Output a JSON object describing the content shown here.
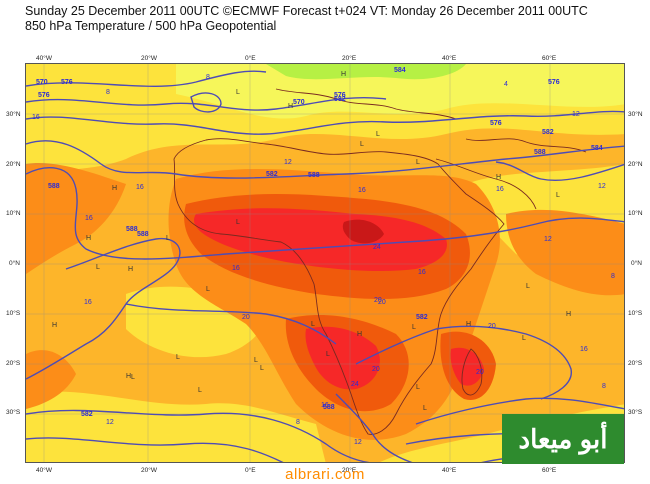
{
  "header": {
    "line1": "Sunday 25 December 2011 00UTC ©ECMWF Forecast t+024 VT: Monday 26 December 2011 00UTC",
    "line2": "850 hPa Temperature / 500 hPa Geopotential"
  },
  "axes": {
    "top_lon": [
      "40°W",
      "20°W",
      "0°E",
      "20°E",
      "40°E",
      "60°E"
    ],
    "bottom_lon": [
      "40°W",
      "20°W",
      "0°E",
      "20°E",
      "40°E",
      "60°E"
    ],
    "lat": [
      "30°N",
      "20°N",
      "10°N",
      "0°N",
      "10°S",
      "20°S",
      "30°S"
    ]
  },
  "colors": {
    "temp_0_4": "#b6f044",
    "temp_4_8": "#f6f65a",
    "temp_8_12": "#fde33c",
    "temp_12_16": "#fdb52a",
    "temp_16_20": "#fc8d18",
    "temp_20_24": "#f05a0c",
    "temp_24_28": "#f62828",
    "temp_28_plus": "#c91818",
    "geopotential": "#4e4cb5",
    "temp_label": "#2b2bd6",
    "coast": "#7a2a20",
    "watermark": "#ff8c00",
    "logo_bg": "#2e8b2e"
  },
  "contours": {
    "geopotential_labels": [
      "570",
      "576",
      "570",
      "576",
      "584",
      "582",
      "576",
      "588",
      "588",
      "588",
      "588",
      "582",
      "582",
      "584",
      "582",
      "588",
      "576",
      "582",
      "588",
      "576"
    ],
    "temperature_labels": [
      "8",
      "4",
      "12",
      "8",
      "12",
      "16",
      "16",
      "16",
      "16",
      "20",
      "24",
      "16",
      "20",
      "16",
      "12",
      "16",
      "8",
      "12",
      "20",
      "20",
      "16",
      "24",
      "20",
      "12",
      "8",
      "12",
      "16",
      "20",
      "16",
      "12",
      "8"
    ],
    "pressure_marks": [
      "H",
      "H",
      "L",
      "L",
      "H",
      "H",
      "L",
      "L",
      "H",
      "L",
      "L",
      "H",
      "H",
      "L",
      "L",
      "L",
      "L",
      "L",
      "H",
      "H",
      "L",
      "L",
      "H",
      "L",
      "H",
      "L",
      "L",
      "L",
      "H",
      "L",
      "L",
      "L",
      "L"
    ]
  },
  "branding": {
    "logo_text": "أبو ميعاد",
    "site": "albrari.com"
  }
}
